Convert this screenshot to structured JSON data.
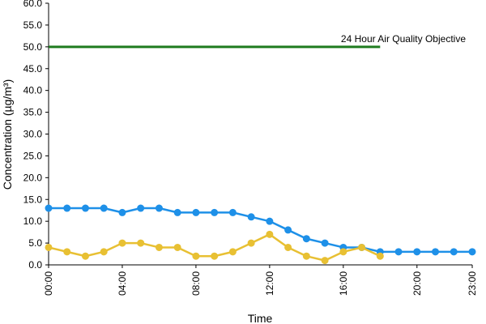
{
  "chart_data": {
    "type": "line",
    "title": "",
    "xlabel": "Time",
    "ylabel": "Concentration (µg/m³)",
    "ylim": [
      0,
      60
    ],
    "yticks": [
      "0.0",
      "5.0",
      "10.0",
      "15.0",
      "20.0",
      "25.0",
      "30.0",
      "35.0",
      "40.0",
      "45.0",
      "50.0",
      "55.0",
      "60.0"
    ],
    "xticks": [
      "00:00",
      "04:00",
      "08:00",
      "12:00",
      "16:00",
      "20:00",
      "23:00"
    ],
    "xtick_hours": [
      0,
      4,
      8,
      12,
      16,
      20,
      23
    ],
    "x": [
      0,
      1,
      2,
      3,
      4,
      5,
      6,
      7,
      8,
      9,
      10,
      11,
      12,
      13,
      14,
      15,
      16,
      17,
      18,
      19,
      20,
      21,
      22,
      23
    ],
    "grid": false,
    "series": [
      {
        "color": "#1E90E8",
        "values": [
          13,
          13,
          13,
          13,
          12,
          13,
          13,
          12,
          12,
          12,
          12,
          11,
          10,
          8,
          6,
          5,
          4,
          4,
          3,
          3,
          3,
          3,
          3,
          3
        ]
      },
      {
        "color": "#E8C033",
        "values": [
          4,
          3,
          2,
          3,
          5,
          5,
          4,
          4,
          2,
          2,
          3,
          5,
          7,
          4,
          2,
          1,
          3,
          4,
          2,
          null,
          null,
          null,
          null,
          null
        ]
      }
    ],
    "reference_line": {
      "label": "24 Hour Air Quality Objective",
      "value": 50,
      "x_start": 0,
      "x_end": 18,
      "color": "#1E7B1E"
    }
  }
}
